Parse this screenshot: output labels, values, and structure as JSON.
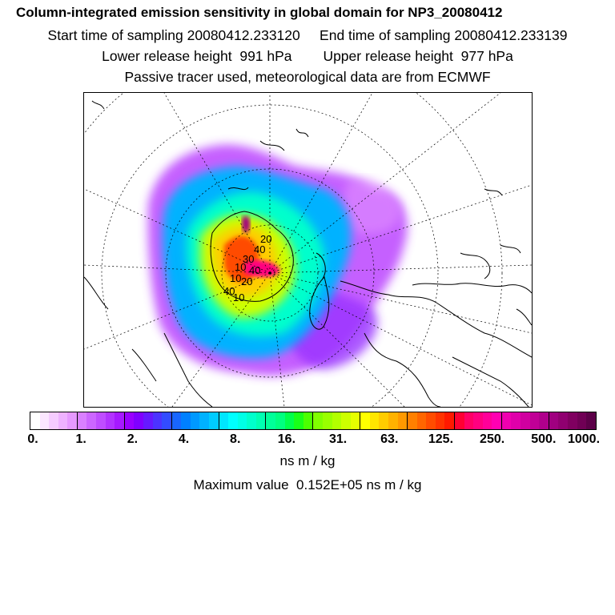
{
  "header": {
    "title": "Column-integrated emission sensitivity in global domain for NP3_20080412",
    "line2": "Start time of sampling 20080412.233120     End time of sampling 20080412.233139",
    "line3": "Lower release height  991 hPa        Upper release height  977 hPa",
    "line4": "Passive tracer used, meteorological data are from ECMWF"
  },
  "colorbar": {
    "colors": [
      "#ffffff",
      "#fbe6ff",
      "#f5ccff",
      "#eeb2ff",
      "#e699ff",
      "#d980ff",
      "#cc66ff",
      "#bf4dff",
      "#b233ff",
      "#a619ff",
      "#9900ff",
      "#8000ff",
      "#6619ff",
      "#4c33ff",
      "#334cff",
      "#1966ff",
      "#0080ff",
      "#0099ff",
      "#00b2ff",
      "#00ccff",
      "#00e6ff",
      "#00ffff",
      "#00ffe6",
      "#00ffcc",
      "#00ffb2",
      "#00ff99",
      "#00ff80",
      "#00ff4c",
      "#19ff19",
      "#4cff00",
      "#80ff00",
      "#99ff00",
      "#b2ff00",
      "#ccff00",
      "#e6ff00",
      "#ffff00",
      "#ffe600",
      "#ffcc00",
      "#ffb200",
      "#ff9900",
      "#ff8000",
      "#ff6600",
      "#ff4c00",
      "#ff3300",
      "#ff1900",
      "#ff0033",
      "#ff0066",
      "#ff0080",
      "#ff0099",
      "#ff00b2",
      "#f000b0",
      "#e000aa",
      "#d000a0",
      "#c00096",
      "#b0008c",
      "#a00080",
      "#900070",
      "#800060",
      "#700055",
      "#5c0048"
    ],
    "ticks": [
      "0.",
      "1.",
      "2.",
      "4.",
      "8.",
      "16.",
      "31.",
      "63.",
      "125.",
      "250.",
      "500.",
      "1000."
    ]
  },
  "units": "ns m / kg",
  "max_value": "Maximum value  0.152E+05 ns m / kg",
  "map": {
    "contour_labels": [
      "20",
      "40",
      "30",
      "10",
      "40",
      "10",
      "20",
      "40",
      "10"
    ]
  }
}
